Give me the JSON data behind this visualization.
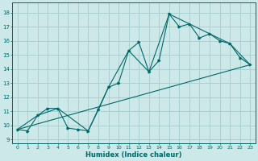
{
  "xlabel": "Humidex (Indice chaleur)",
  "ylabel": "",
  "bg_color": "#cce8e8",
  "grid_color": "#aad0d0",
  "line_color": "#006868",
  "xlim": [
    -0.5,
    23.5
  ],
  "ylim": [
    8.7,
    18.7
  ],
  "xticks": [
    0,
    1,
    2,
    3,
    4,
    5,
    6,
    7,
    8,
    9,
    10,
    11,
    12,
    13,
    14,
    15,
    16,
    17,
    18,
    19,
    20,
    21,
    22,
    23
  ],
  "yticks": [
    9,
    10,
    11,
    12,
    13,
    14,
    15,
    16,
    17,
    18
  ],
  "line1_x": [
    0,
    1,
    2,
    3,
    4,
    5,
    6,
    7,
    8,
    9,
    10,
    11,
    12,
    13,
    14,
    15,
    16,
    17,
    18,
    19,
    20,
    21,
    22,
    23
  ],
  "line1_y": [
    9.7,
    9.6,
    10.7,
    11.2,
    11.2,
    9.8,
    9.7,
    9.6,
    11.1,
    12.7,
    13.0,
    15.3,
    15.9,
    13.8,
    14.6,
    17.9,
    17.0,
    17.2,
    16.2,
    16.5,
    16.0,
    15.8,
    14.8,
    14.3
  ],
  "line2_x": [
    0,
    23
  ],
  "line2_y": [
    9.7,
    14.3
  ],
  "line3_x": [
    0,
    2,
    4,
    7,
    9,
    11,
    13,
    15,
    17,
    19,
    21,
    23
  ],
  "line3_y": [
    9.7,
    10.7,
    11.2,
    9.6,
    12.7,
    15.3,
    13.8,
    17.9,
    17.2,
    16.5,
    15.8,
    14.3
  ]
}
